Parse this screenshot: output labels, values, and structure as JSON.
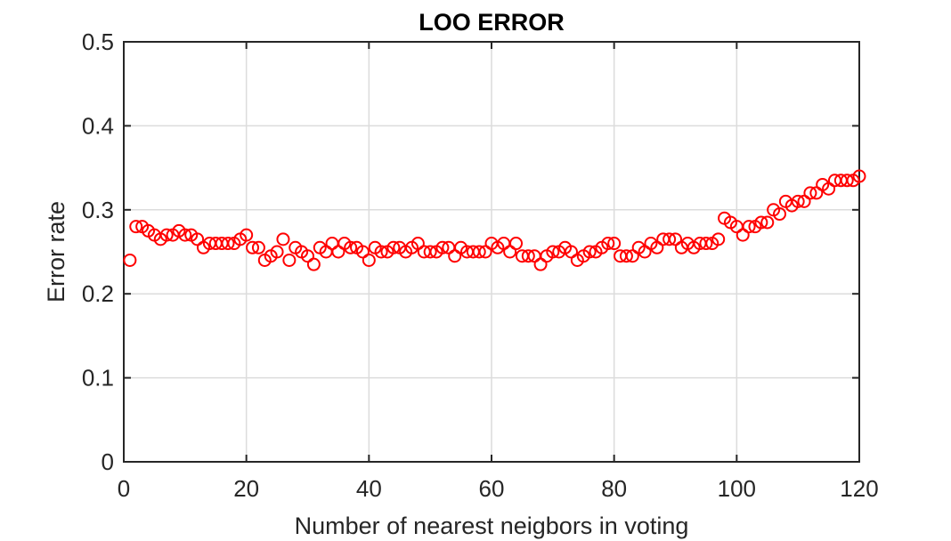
{
  "chart_data": {
    "type": "scatter",
    "title": "LOO ERROR",
    "xlabel": "Number of nearest neigbors in voting",
    "ylabel": "Error rate",
    "xlim": [
      0,
      120
    ],
    "ylim": [
      0,
      0.5
    ],
    "xticks": [
      0,
      20,
      40,
      60,
      80,
      100,
      120
    ],
    "yticks": [
      0,
      0.1,
      0.2,
      0.3,
      0.4,
      0.5
    ],
    "xtick_labels": [
      "0",
      "20",
      "40",
      "60",
      "80",
      "100",
      "120"
    ],
    "ytick_labels": [
      "0",
      "0.1",
      "0.2",
      "0.3",
      "0.4",
      "0.5"
    ],
    "grid": true,
    "marker": "circle-open",
    "color": "#ff0000",
    "x": [
      1,
      2,
      3,
      4,
      5,
      6,
      7,
      8,
      9,
      10,
      11,
      12,
      13,
      14,
      15,
      16,
      17,
      18,
      19,
      20,
      21,
      22,
      23,
      24,
      25,
      26,
      27,
      28,
      29,
      30,
      31,
      32,
      33,
      34,
      35,
      36,
      37,
      38,
      39,
      40,
      41,
      42,
      43,
      44,
      45,
      46,
      47,
      48,
      49,
      50,
      51,
      52,
      53,
      54,
      55,
      56,
      57,
      58,
      59,
      60,
      61,
      62,
      63,
      64,
      65,
      66,
      67,
      68,
      69,
      70,
      71,
      72,
      73,
      74,
      75,
      76,
      77,
      78,
      79,
      80,
      81,
      82,
      83,
      84,
      85,
      86,
      87,
      88,
      89,
      90,
      91,
      92,
      93,
      94,
      95,
      96,
      97,
      98,
      99,
      100,
      101,
      102,
      103,
      104,
      105,
      106,
      107,
      108,
      109,
      110,
      111,
      112,
      113,
      114,
      115,
      116,
      117,
      118,
      119,
      120
    ],
    "y": [
      0.24,
      0.28,
      0.28,
      0.275,
      0.27,
      0.265,
      0.27,
      0.27,
      0.275,
      0.27,
      0.27,
      0.265,
      0.255,
      0.26,
      0.26,
      0.26,
      0.26,
      0.26,
      0.265,
      0.27,
      0.255,
      0.255,
      0.24,
      0.245,
      0.25,
      0.265,
      0.24,
      0.255,
      0.25,
      0.245,
      0.235,
      0.255,
      0.25,
      0.26,
      0.25,
      0.26,
      0.255,
      0.255,
      0.25,
      0.24,
      0.255,
      0.25,
      0.25,
      0.255,
      0.255,
      0.25,
      0.255,
      0.26,
      0.25,
      0.25,
      0.25,
      0.255,
      0.255,
      0.245,
      0.255,
      0.25,
      0.25,
      0.25,
      0.25,
      0.26,
      0.255,
      0.26,
      0.25,
      0.26,
      0.245,
      0.245,
      0.245,
      0.235,
      0.245,
      0.25,
      0.25,
      0.255,
      0.25,
      0.24,
      0.245,
      0.25,
      0.25,
      0.255,
      0.26,
      0.26,
      0.245,
      0.245,
      0.245,
      0.255,
      0.25,
      0.26,
      0.255,
      0.265,
      0.265,
      0.265,
      0.255,
      0.26,
      0.255,
      0.26,
      0.26,
      0.26,
      0.265,
      0.29,
      0.285,
      0.28,
      0.27,
      0.28,
      0.28,
      0.285,
      0.285,
      0.3,
      0.295,
      0.31,
      0.305,
      0.31,
      0.31,
      0.32,
      0.32,
      0.33,
      0.325,
      0.335,
      0.335,
      0.335,
      0.335,
      0.34
    ]
  }
}
